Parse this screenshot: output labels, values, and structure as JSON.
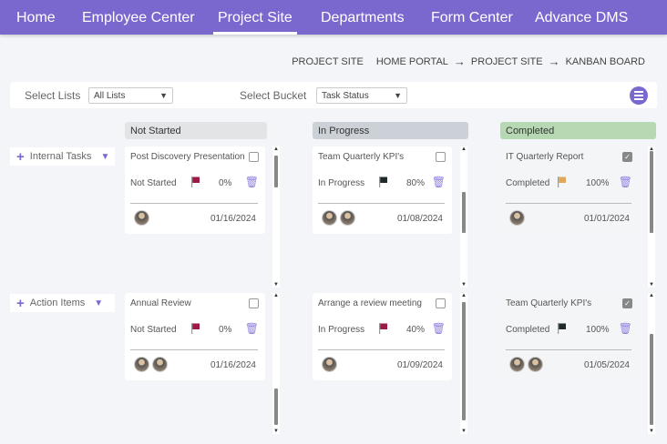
{
  "nav": {
    "items": [
      "Home",
      "Employee Center",
      "Project Site",
      "Departments",
      "Form Center",
      "Advance DMS"
    ],
    "active": "Project Site",
    "color": "#7b68cf"
  },
  "breadcrumb": {
    "title": "PROJECT SITE",
    "path": [
      "HOME PORTAL",
      "PROJECT SITE",
      "KANBAN BOARD"
    ]
  },
  "filter": {
    "lists_label": "Select Lists",
    "lists_value": "All Lists",
    "bucket_label": "Select Bucket",
    "bucket_value": "Task Status",
    "menu_icon": "hamburger-icon"
  },
  "columns": [
    {
      "label": "Not Started",
      "color": "#e3e4e6"
    },
    {
      "label": "In Progress",
      "color": "#cbd1d6"
    },
    {
      "label": "Completed",
      "color": "#b6d8b2"
    }
  ],
  "rows": [
    {
      "label": "Internal Tasks",
      "cards": [
        {
          "title": "Post Discovery Presentation",
          "status": "Not Started",
          "flag": "#9b1b45",
          "percent": "0%",
          "date": "01/16/2024",
          "avatars": 1,
          "checked": false
        },
        {
          "title": "Team Quarterly KPI's",
          "status": "In Progress",
          "flag": "#1f2b2b",
          "percent": "80%",
          "date": "01/08/2024",
          "avatars": 2,
          "checked": false
        },
        {
          "title": "IT Quarterly Report",
          "status": "Completed",
          "flag": "#e0a858",
          "percent": "100%",
          "date": "01/01/2024",
          "avatars": 1,
          "checked": true
        }
      ]
    },
    {
      "label": "Action Items",
      "cards": [
        {
          "title": "Annual Review",
          "status": "Not Started",
          "flag": "#9b1b45",
          "percent": "0%",
          "date": "01/16/2024",
          "avatars": 2,
          "checked": false
        },
        {
          "title": "Arrange a review meeting",
          "status": "In Progress",
          "flag": "#9b1b45",
          "percent": "40%",
          "date": "01/09/2024",
          "avatars": 1,
          "checked": false
        },
        {
          "title": "Team Quarterly KPI's",
          "status": "Completed",
          "flag": "#1f2b2b",
          "percent": "100%",
          "date": "01/05/2024",
          "avatars": 2,
          "checked": true
        }
      ]
    }
  ]
}
